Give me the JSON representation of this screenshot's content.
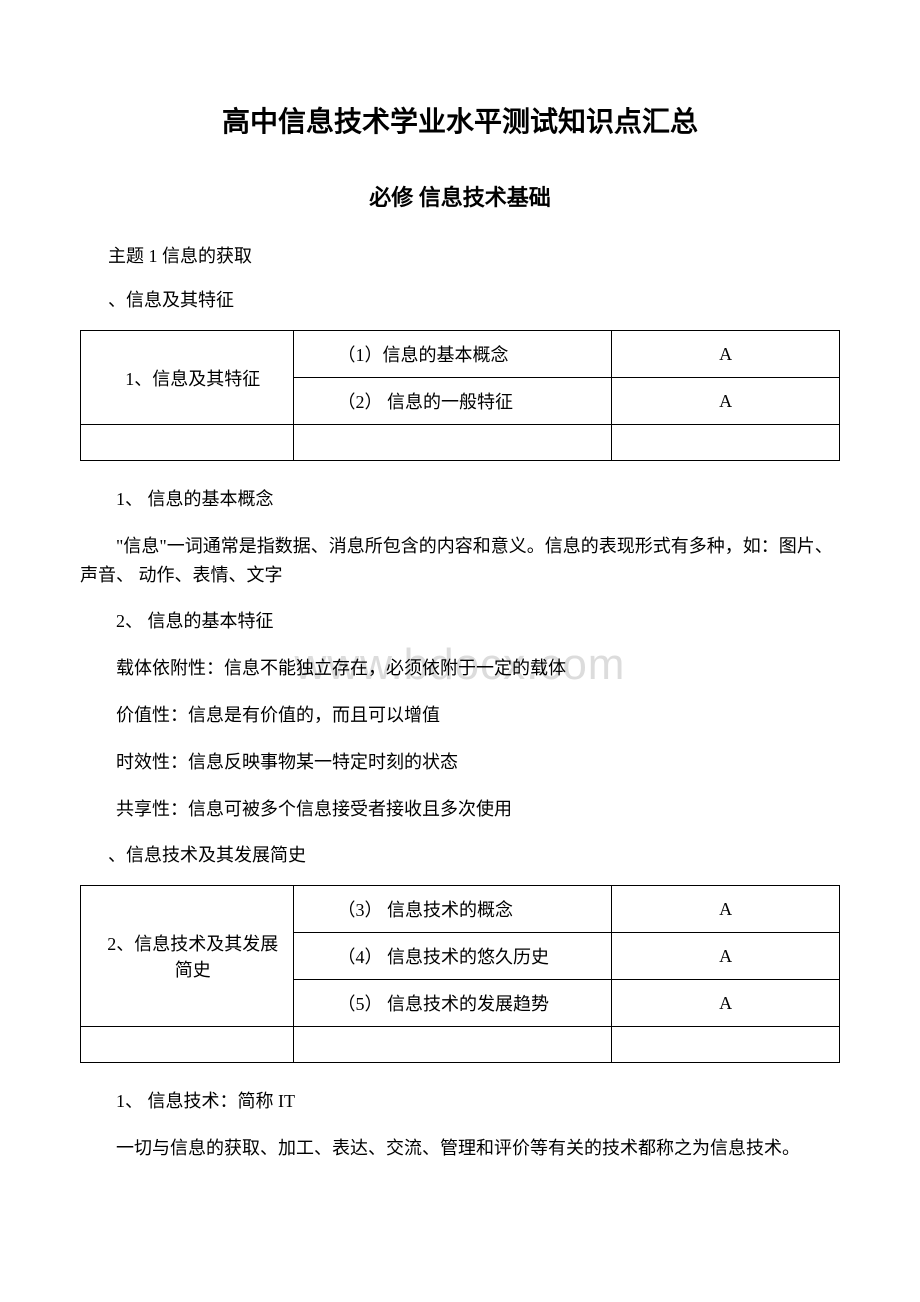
{
  "title": "高中信息技术学业水平测试知识点汇总",
  "subtitle": "必修 信息技术基础",
  "watermark": "www.bdocx.com",
  "topic1": {
    "heading": "主题 1 信息的获取",
    "sub1": "、信息及其特征",
    "table1": {
      "leftCell": "1、信息及其特征",
      "row1": {
        "mid": "（1）信息的基本概念",
        "right": "A"
      },
      "row2": {
        "mid": "（2） 信息的一般特征",
        "right": "A"
      }
    },
    "point1_header": "1、 信息的基本概念",
    "point1_text": "\"信息\"一词通常是指数据、消息所包含的内容和意义。信息的表现形式有多种，如：图片、声音、 动作、表情、文字",
    "point2_header": "2、 信息的基本特征",
    "point2_line1": "载体依附性：信息不能独立存在，必须依附于一定的载体",
    "point2_line2": "价值性：信息是有价值的，而且可以增值",
    "point2_line3": "时效性：信息反映事物某一特定时刻的状态",
    "point2_line4": "共享性：信息可被多个信息接受者接收且多次使用",
    "sub2": "、信息技术及其发展简史",
    "table2": {
      "leftCell": "2、信息技术及其发展简史",
      "row1": {
        "mid": "（3） 信息技术的概念",
        "right": "A"
      },
      "row2": {
        "mid": "（4） 信息技术的悠久历史",
        "right": "A"
      },
      "row3": {
        "mid": "（5） 信息技术的发展趋势",
        "right": "A"
      }
    },
    "point3_header": "1、 信息技术：简称 IT",
    "point3_text": "一切与信息的获取、加工、表达、交流、管理和评价等有关的技术都称之为信息技术。"
  }
}
